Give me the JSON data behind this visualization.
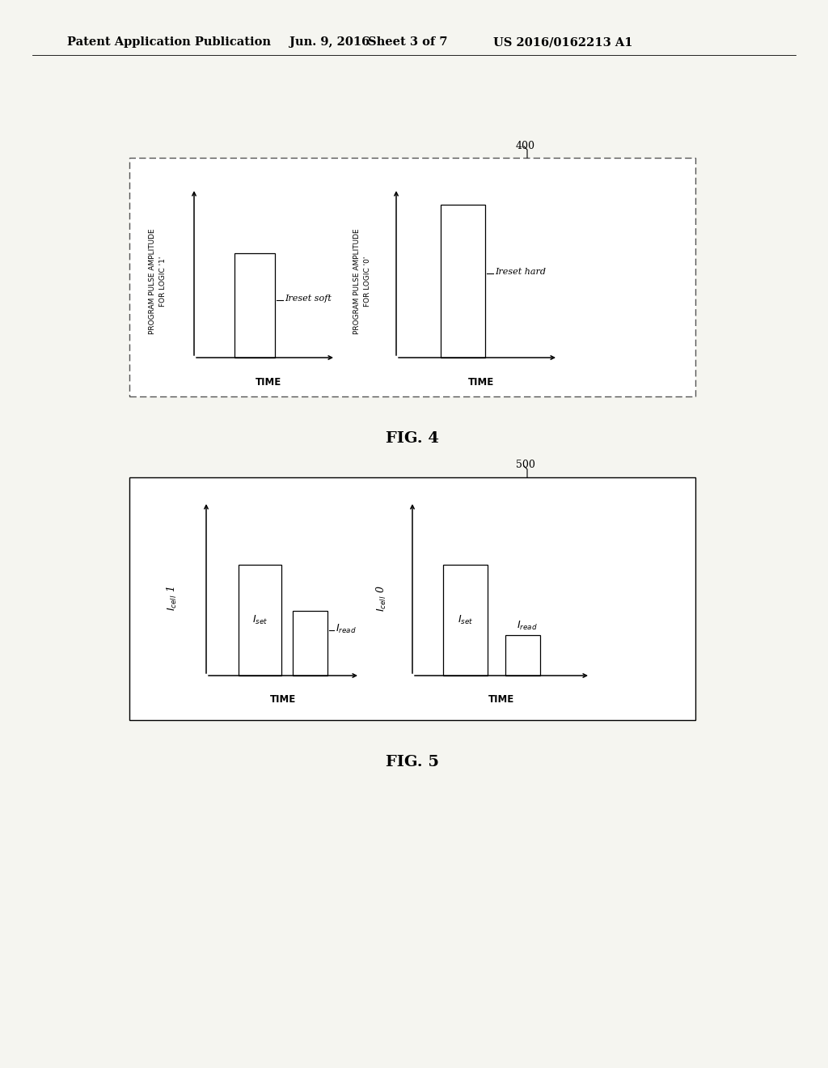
{
  "bg_color": "#f5f5f0",
  "bg_color_inner": "#ffffff",
  "header_text": "Patent Application Publication",
  "header_date": "Jun. 9, 2016",
  "header_sheet": "Sheet 3 of 7",
  "header_patent": "US 2016/0162213 A1",
  "fig4_label": "400",
  "fig4_caption": "FIG. 4",
  "fig5_label": "500",
  "fig5_caption": "FIG. 5"
}
